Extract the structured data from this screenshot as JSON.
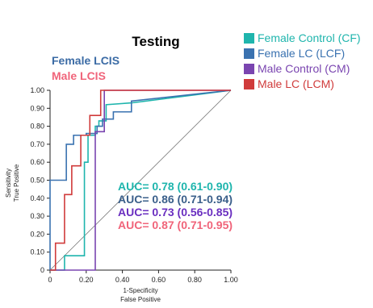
{
  "chart_data": {
    "type": "line",
    "title": "Testing",
    "subtitles": [
      {
        "text": "Female LCIS",
        "color": "#3b6ba5"
      },
      {
        "text": "Male LCIS",
        "color": "#f0647a"
      }
    ],
    "xlabel": [
      "1-Specificity",
      "False Positive"
    ],
    "ylabel": [
      "Sensitivity",
      "True Positive"
    ],
    "xlim": [
      0,
      1
    ],
    "ylim": [
      0,
      1
    ],
    "x_ticks": [
      {
        "value": 0,
        "label": "0"
      },
      {
        "value": 0.2,
        "label": "0.20"
      },
      {
        "value": 0.4,
        "label": "0.40"
      },
      {
        "value": 0.6,
        "label": "0.60"
      },
      {
        "value": 0.8,
        "label": "0.80"
      },
      {
        "value": 1.0,
        "label": "1.00"
      }
    ],
    "y_ticks": [
      {
        "value": 0,
        "label": "0"
      },
      {
        "value": 0.1,
        "label": "0.10"
      },
      {
        "value": 0.2,
        "label": "0.20"
      },
      {
        "value": 0.3,
        "label": "0.30"
      },
      {
        "value": 0.4,
        "label": "0.40"
      },
      {
        "value": 0.5,
        "label": "0.50"
      },
      {
        "value": 0.6,
        "label": "0.60"
      },
      {
        "value": 0.7,
        "label": "0.70"
      },
      {
        "value": 0.8,
        "label": "0.80"
      },
      {
        "value": 0.9,
        "label": "0.90"
      },
      {
        "value": 1.0,
        "label": "1.00"
      }
    ],
    "grid": false,
    "legend_position": "top-right",
    "reference_line": {
      "x": [
        0,
        1
      ],
      "y": [
        0,
        1
      ],
      "color": "#777777"
    },
    "series": [
      {
        "name": "Female Control (CF)",
        "color": "#1fb5ad",
        "x": [
          0,
          0.08,
          0.08,
          0.19,
          0.19,
          0.21,
          0.21,
          0.25,
          0.25,
          0.27,
          0.27,
          0.31,
          0.31,
          0.45,
          1.0
        ],
        "y": [
          0,
          0,
          0.08,
          0.08,
          0.6,
          0.6,
          0.75,
          0.75,
          0.8,
          0.8,
          0.83,
          0.83,
          0.92,
          0.93,
          1.0
        ]
      },
      {
        "name": "Female LC (LCF)",
        "color": "#3a72b0",
        "x": [
          0,
          0,
          0.09,
          0.09,
          0.13,
          0.13,
          0.2,
          0.2,
          0.26,
          0.26,
          0.29,
          0.29,
          0.35,
          0.35,
          0.45,
          0.45,
          1.0
        ],
        "y": [
          0,
          0.5,
          0.5,
          0.7,
          0.7,
          0.75,
          0.75,
          0.76,
          0.76,
          0.8,
          0.8,
          0.84,
          0.84,
          0.88,
          0.88,
          0.94,
          1.0
        ]
      },
      {
        "name": "Male Control (CM)",
        "color": "#7a45b0",
        "x": [
          0,
          0.25,
          0.25,
          0.3,
          0.3,
          1.0
        ],
        "y": [
          0,
          0,
          0.77,
          0.77,
          1.0,
          1.0
        ]
      },
      {
        "name": "Male LC (LCM)",
        "color": "#d03b3b",
        "x": [
          0,
          0.03,
          0.03,
          0.08,
          0.08,
          0.12,
          0.12,
          0.17,
          0.17,
          0.22,
          0.22,
          0.28,
          0.28,
          1.0
        ],
        "y": [
          0,
          0,
          0.15,
          0.15,
          0.42,
          0.42,
          0.58,
          0.58,
          0.75,
          0.75,
          0.86,
          0.86,
          1.0,
          1.0
        ]
      }
    ],
    "annotations": [
      {
        "text": "AUC= 0.78  (0.61-0.90)",
        "color": "#1fb5ad"
      },
      {
        "text": "AUC= 0.86  (0.71-0.94)",
        "color": "#3a5f8a"
      },
      {
        "text": "AUC= 0.73  (0.56-0.85)",
        "color": "#6a2fc0"
      },
      {
        "text": "AUC= 0.87  (0.71-0.95)",
        "color": "#f0647a"
      }
    ]
  }
}
